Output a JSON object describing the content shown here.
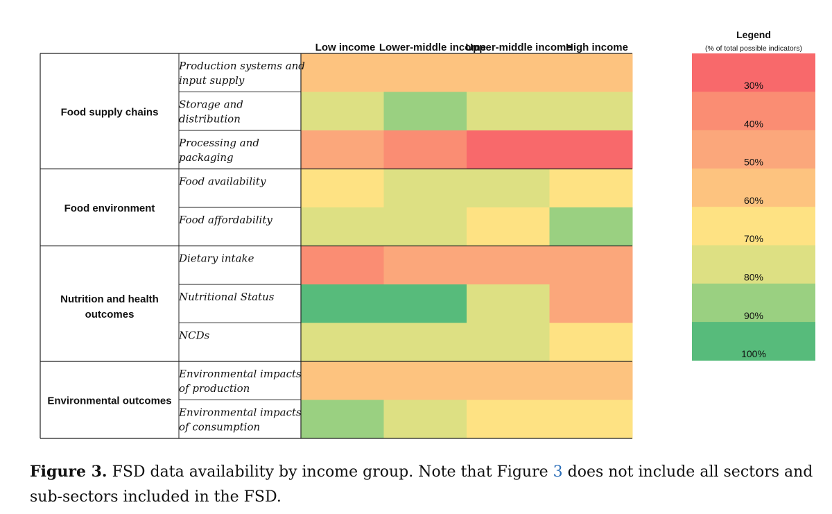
{
  "chart_data": {
    "type": "heatmap",
    "columns": [
      "Low income",
      "Lower-middle income",
      "Upper-middle income",
      "High income"
    ],
    "groups": [
      {
        "name": "Food supply chains",
        "rows": [
          "Production systems and input supply",
          "Storage and distribution",
          "Processing and packaging"
        ]
      },
      {
        "name": "Food environment",
        "rows": [
          "Food availability",
          "Food affordability"
        ]
      },
      {
        "name": "Nutrition and health outcomes",
        "rows": [
          "Dietary intake",
          "Nutritional Status",
          "NCDs"
        ]
      },
      {
        "name": "Environmental outcomes",
        "rows": [
          "Environmental impacts of production",
          "Environmental impacts of consumption"
        ]
      }
    ],
    "values": [
      [
        60,
        60,
        60,
        60
      ],
      [
        80,
        90,
        80,
        80
      ],
      [
        50,
        45,
        35,
        35
      ],
      [
        70,
        80,
        80,
        70
      ],
      [
        80,
        85,
        70,
        90
      ],
      [
        45,
        50,
        50,
        55
      ],
      [
        100,
        100,
        80,
        55
      ],
      [
        85,
        85,
        80,
        70
      ],
      [
        60,
        60,
        60,
        60
      ],
      [
        90,
        80,
        75,
        70
      ]
    ],
    "legend": {
      "title": "Legend",
      "subtitle": "(% of total possible indicators)",
      "levels": [
        30,
        40,
        50,
        60,
        70,
        80,
        90,
        100
      ],
      "labels": [
        "30%",
        "40%",
        "50%",
        "60%",
        "70%",
        "80%",
        "90%",
        "100%"
      ]
    },
    "colors": {
      "30": "#f8696b",
      "40": "#fa8d73",
      "50": "#fba77b",
      "60": "#fdc37f",
      "70": "#fee283",
      "80": "#dde083",
      "90": "#9ad081",
      "100": "#57bb7b"
    }
  },
  "caption": {
    "label": "Figure 3.",
    "text_before": " FSD data availability by income group. Note that Figure ",
    "ref": "3",
    "text_after": " does not include all sectors and sub-sectors included in the FSD."
  }
}
